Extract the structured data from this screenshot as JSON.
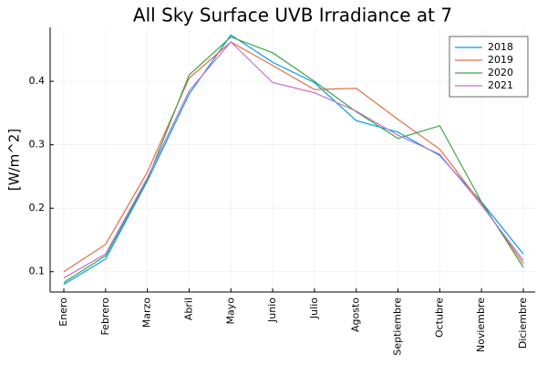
{
  "chart_data": {
    "type": "line",
    "title": "All Sky Surface UVB Irradiance at 7",
    "y_label": "[W/m^2]",
    "categories": [
      "Enero",
      "Febrero",
      "Marzo",
      "Abril",
      "Mayo",
      "Junio",
      "Julio",
      "Agosto",
      "Septiembre",
      "Octubre",
      "Noviembre",
      "Diciembre"
    ],
    "series": [
      {
        "name": "2018",
        "color": "#009af9",
        "values": [
          0.08,
          0.12,
          0.243,
          0.38,
          0.473,
          0.43,
          0.398,
          0.338,
          0.32,
          0.283,
          0.21,
          0.128
        ]
      },
      {
        "name": "2019",
        "color": "#e26f46",
        "values": [
          0.1,
          0.143,
          0.257,
          0.405,
          0.462,
          0.425,
          0.387,
          0.389,
          0.34,
          0.293,
          0.207,
          0.113
        ]
      },
      {
        "name": "2020",
        "color": "#3da44d",
        "values": [
          0.083,
          0.125,
          0.245,
          0.41,
          0.47,
          0.445,
          0.4,
          0.352,
          0.31,
          0.33,
          0.21,
          0.107
        ]
      },
      {
        "name": "2021",
        "color": "#c271d2",
        "values": [
          0.09,
          0.128,
          0.248,
          0.385,
          0.462,
          0.398,
          0.382,
          0.353,
          0.315,
          0.285,
          0.205,
          0.118
        ]
      }
    ],
    "ylim": [
      0.068,
      0.485
    ],
    "yticks": [
      0.1,
      0.2,
      0.3,
      0.4
    ],
    "grid": true,
    "legend": "top-right"
  }
}
